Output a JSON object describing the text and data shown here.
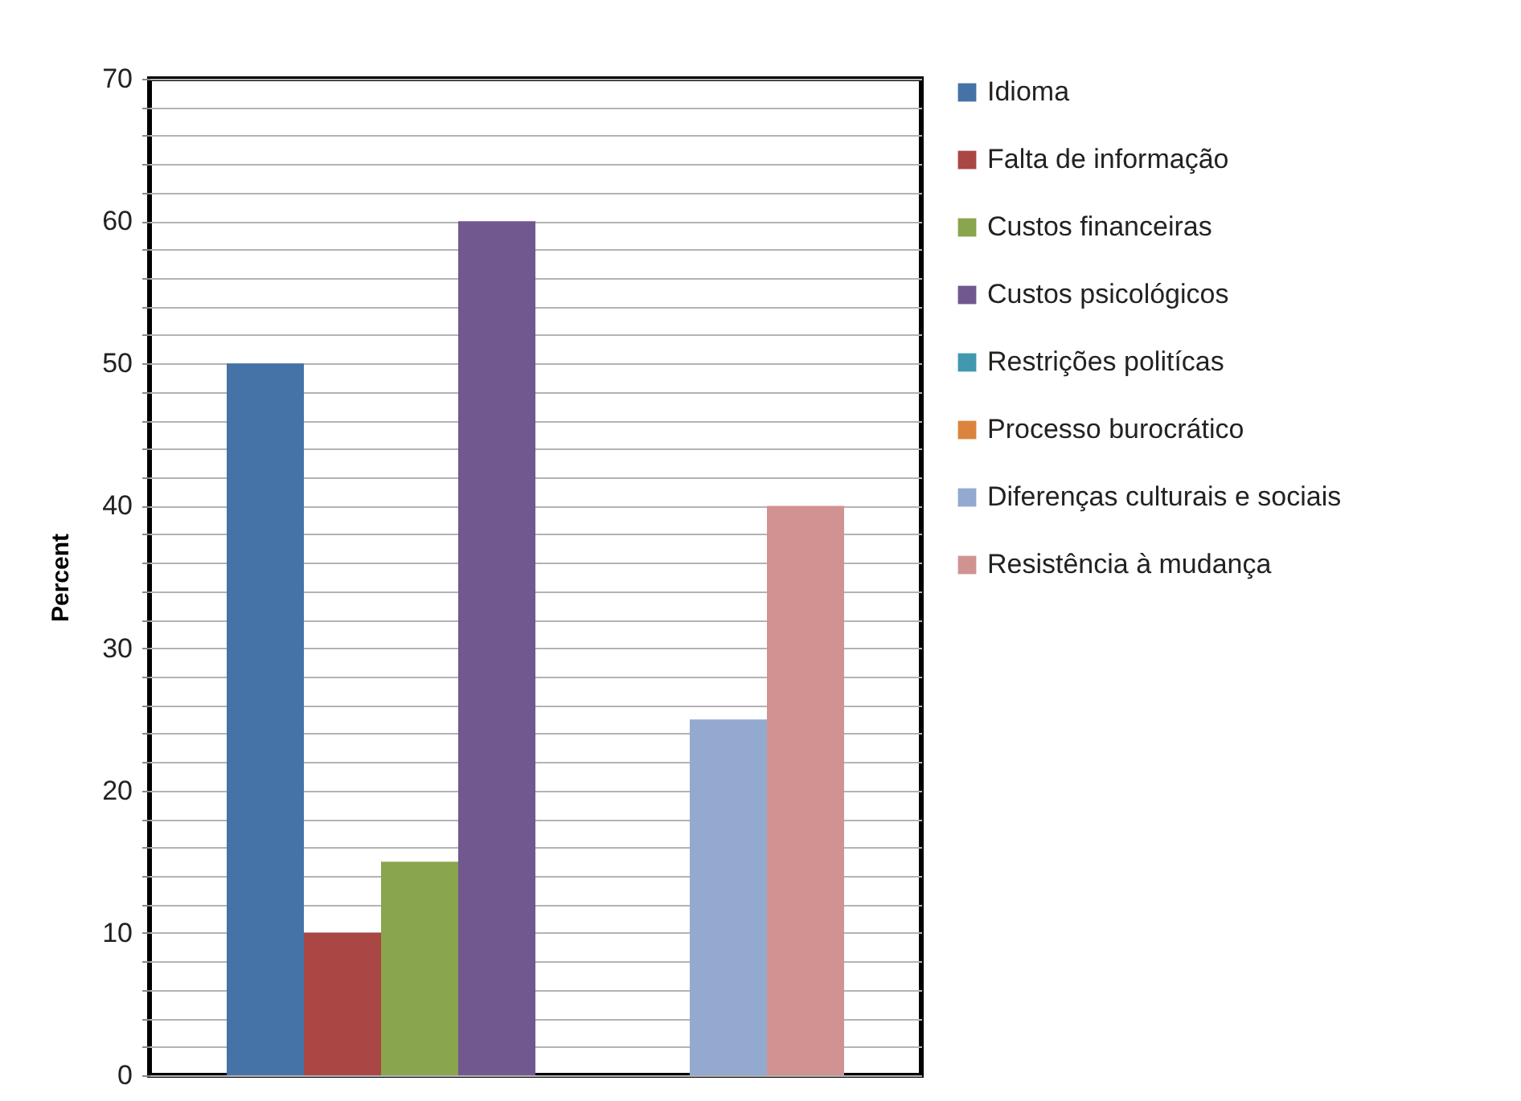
{
  "chart_data": {
    "type": "bar",
    "ylabel": "Percent",
    "categories": [
      null
    ],
    "series": [
      {
        "name": "Idioma",
        "color": "#4573a7",
        "values": [
          50
        ]
      },
      {
        "name": "Falta de informação",
        "color": "#aa4643",
        "values": [
          10
        ]
      },
      {
        "name": "Custos financeiras",
        "color": "#89a54e",
        "values": [
          15
        ]
      },
      {
        "name": "Custos psicológicos",
        "color": "#71588f",
        "values": [
          60
        ]
      },
      {
        "name": "Restrições politícas",
        "color": "#4198af",
        "values": [
          0
        ]
      },
      {
        "name": "Processo burocrático",
        "color": "#db843d",
        "values": [
          0
        ]
      },
      {
        "name": "Diferenças culturais e sociais",
        "color": "#93a9cf",
        "values": [
          25
        ]
      },
      {
        "name": "Resistência à mudança",
        "color": "#d19392",
        "values": [
          40
        ]
      }
    ],
    "ylim": [
      0,
      70
    ],
    "yticks": [
      0,
      {
        "value": 2,
        "label": null
      },
      {
        "value": 4,
        "label": null
      },
      {
        "value": 6,
        "label": null
      },
      {
        "value": 8,
        "label": null
      },
      10,
      {
        "value": 12,
        "label": null
      },
      {
        "value": 14,
        "label": null
      },
      {
        "value": 16,
        "label": null
      },
      {
        "value": 18,
        "label": null
      },
      20,
      {
        "value": 22,
        "label": null
      },
      {
        "value": 24,
        "label": null
      },
      {
        "value": 26,
        "label": null
      },
      {
        "value": 28,
        "label": null
      },
      30,
      {
        "value": 32,
        "label": null
      },
      {
        "value": 34,
        "label": null
      },
      {
        "value": 36,
        "label": null
      },
      {
        "value": 38,
        "label": null
      },
      40,
      {
        "value": 42,
        "label": null
      },
      {
        "value": 44,
        "label": null
      },
      {
        "value": 46,
        "label": null
      },
      {
        "value": 48,
        "label": null
      },
      50,
      {
        "value": 52,
        "label": null
      },
      {
        "value": 54,
        "label": null
      },
      {
        "value": 56,
        "label": null
      },
      {
        "value": 58,
        "label": null
      },
      60,
      {
        "value": 62,
        "label": null
      },
      {
        "value": 64,
        "label": null
      },
      {
        "value": 66,
        "label": null
      },
      {
        "value": 68,
        "label": null
      },
      70
    ],
    "grid": "y",
    "legend": "right",
    "tick_labels": "y"
  }
}
